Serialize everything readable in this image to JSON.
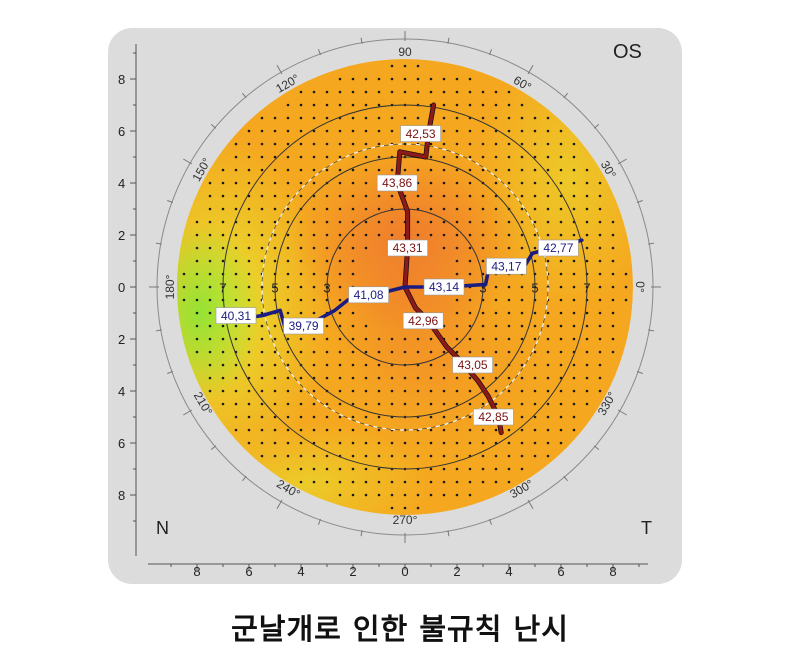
{
  "eye_label": "OS",
  "nasal_label": "N",
  "temporal_label": "T",
  "caption": "군날개로 인한 불규칙 난시",
  "y_ticks": [
    "8",
    "6",
    "4",
    "2",
    "0",
    "2",
    "4",
    "6",
    "8"
  ],
  "x_ticks": [
    "8",
    "6",
    "4",
    "2",
    "0",
    "2",
    "4",
    "6",
    "8"
  ],
  "angle_labels": [
    {
      "text": "0°",
      "deg": 0
    },
    {
      "text": "30°",
      "deg": 30
    },
    {
      "text": "60°",
      "deg": 60
    },
    {
      "text": "90",
      "deg": 90
    },
    {
      "text": "120°",
      "deg": 120
    },
    {
      "text": "150°",
      "deg": 150
    },
    {
      "text": "180°",
      "deg": 180
    },
    {
      "text": "210°",
      "deg": 210
    },
    {
      "text": "240°",
      "deg": 240
    },
    {
      "text": "270°",
      "deg": 270
    },
    {
      "text": "300°",
      "deg": 300
    },
    {
      "text": "330°",
      "deg": 330
    }
  ],
  "ring_labels": [
    {
      "text": "3",
      "mm": -3
    },
    {
      "text": "5",
      "mm": -5
    },
    {
      "text": "7",
      "mm": -7
    },
    {
      "text": "3",
      "mm": 3
    },
    {
      "text": "5",
      "mm": 5
    },
    {
      "text": "7",
      "mm": 7
    }
  ],
  "steep_meridian_values": [
    {
      "text": "42,53",
      "mx": 0.6,
      "my": 5.9
    },
    {
      "text": "43,86",
      "mx": -0.3,
      "my": 4.0
    },
    {
      "text": "43,31",
      "mx": 0.1,
      "my": 1.5
    },
    {
      "text": "42,96",
      "mx": 0.7,
      "my": -1.3
    },
    {
      "text": "43,05",
      "mx": 2.6,
      "my": -3.0
    },
    {
      "text": "42,85",
      "mx": 3.4,
      "my": -5.0
    }
  ],
  "flat_meridian_values": [
    {
      "text": "43,14",
      "mx": 1.5,
      "my": 0.0
    },
    {
      "text": "43,17",
      "mx": 3.9,
      "my": 0.8
    },
    {
      "text": "42,77",
      "mx": 5.9,
      "my": 1.5
    },
    {
      "text": "41,08",
      "mx": -1.4,
      "my": -0.3
    },
    {
      "text": "39,79",
      "mx": -3.9,
      "my": -1.5
    },
    {
      "text": "40,31",
      "mx": -6.5,
      "my": -1.1
    }
  ],
  "colors": {
    "steep_meridian": "#8b1a1a",
    "flat_meridian": "#1c1c80",
    "map_center": "#ec7a2a",
    "map_mid": "#f6a21e",
    "map_edge_yellow": "#e7e32a",
    "map_nasal_green": "#a8e63a"
  }
}
